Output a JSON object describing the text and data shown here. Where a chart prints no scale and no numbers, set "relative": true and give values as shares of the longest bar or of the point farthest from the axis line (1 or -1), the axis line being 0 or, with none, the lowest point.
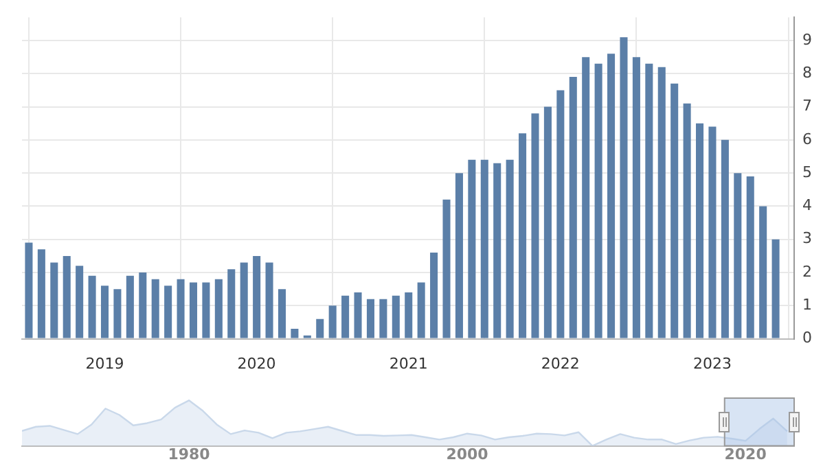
{
  "chart_data": [
    {
      "type": "bar",
      "x": [
        "2018-07",
        "2018-08",
        "2018-09",
        "2018-10",
        "2018-11",
        "2018-12",
        "2019-01",
        "2019-02",
        "2019-03",
        "2019-04",
        "2019-05",
        "2019-06",
        "2019-07",
        "2019-08",
        "2019-09",
        "2019-10",
        "2019-11",
        "2019-12",
        "2020-01",
        "2020-02",
        "2020-03",
        "2020-04",
        "2020-05",
        "2020-06",
        "2020-07",
        "2020-08",
        "2020-09",
        "2020-10",
        "2020-11",
        "2020-12",
        "2021-01",
        "2021-02",
        "2021-03",
        "2021-04",
        "2021-05",
        "2021-06",
        "2021-07",
        "2021-08",
        "2021-09",
        "2021-10",
        "2021-11",
        "2021-12",
        "2022-01",
        "2022-02",
        "2022-03",
        "2022-04",
        "2022-05",
        "2022-06",
        "2022-07",
        "2022-08",
        "2022-09",
        "2022-10",
        "2022-11",
        "2022-12",
        "2023-01",
        "2023-02",
        "2023-03",
        "2023-04",
        "2023-05",
        "2023-06"
      ],
      "values": [
        2.9,
        2.7,
        2.3,
        2.5,
        2.2,
        1.9,
        1.6,
        1.5,
        1.9,
        2.0,
        1.8,
        1.6,
        1.8,
        1.7,
        1.7,
        1.8,
        2.1,
        2.3,
        2.5,
        2.3,
        1.5,
        0.3,
        0.1,
        0.6,
        1.0,
        1.3,
        1.4,
        1.2,
        1.2,
        1.3,
        1.4,
        1.7,
        2.6,
        4.2,
        5.0,
        5.4,
        5.4,
        5.3,
        5.4,
        6.2,
        6.8,
        7.0,
        7.5,
        7.9,
        8.5,
        8.3,
        8.6,
        9.1,
        8.5,
        8.3,
        8.2,
        7.7,
        7.1,
        6.5,
        6.4,
        6.0,
        5.0,
        4.9,
        4.0,
        3.0
      ],
      "color": "#5b7fa8",
      "xlim": [
        "2018-06-15",
        "2023-07-15"
      ],
      "xticks": [
        "2019",
        "2020",
        "2021",
        "2022",
        "2023"
      ],
      "ylim": [
        0,
        9.7
      ],
      "yticks": [
        0,
        1,
        2,
        3,
        4,
        5,
        6,
        7,
        8,
        9
      ],
      "grid": true,
      "legend": false
    },
    {
      "type": "area",
      "relative": true,
      "x": [
        1968,
        1969,
        1970,
        1971,
        1972,
        1973,
        1974,
        1975,
        1976,
        1977,
        1978,
        1979,
        1980,
        1981,
        1982,
        1983,
        1984,
        1985,
        1986,
        1987,
        1988,
        1989,
        1990,
        1991,
        1992,
        1993,
        1994,
        1995,
        1996,
        1997,
        1998,
        1999,
        2000,
        2001,
        2002,
        2003,
        2004,
        2005,
        2006,
        2007,
        2008,
        2009,
        2010,
        2011,
        2012,
        2013,
        2014,
        2015,
        2016,
        2017,
        2018,
        2019,
        2020,
        2021,
        2022,
        2023
      ],
      "values": [
        0.33,
        0.42,
        0.44,
        0.35,
        0.26,
        0.47,
        0.82,
        0.68,
        0.45,
        0.5,
        0.58,
        0.84,
        1.0,
        0.77,
        0.47,
        0.26,
        0.34,
        0.29,
        0.17,
        0.29,
        0.32,
        0.37,
        0.42,
        0.33,
        0.24,
        0.24,
        0.22,
        0.23,
        0.24,
        0.19,
        0.14,
        0.19,
        0.27,
        0.23,
        0.14,
        0.19,
        0.22,
        0.27,
        0.26,
        0.23,
        0.3,
        0.0,
        0.14,
        0.26,
        0.18,
        0.14,
        0.14,
        0.04,
        0.12,
        0.18,
        0.2,
        0.16,
        0.11,
        0.37,
        0.6,
        0.32
      ],
      "color": "#c9d8ea",
      "xlim": [
        1968,
        2023.5
      ],
      "xticks": [
        1980,
        2000,
        2020
      ],
      "grid": false,
      "legend": false,
      "bands": [
        {
          "axis": "x",
          "from": 2018.5,
          "to": 2023.5,
          "color": "#a9c4e6"
        }
      ]
    }
  ]
}
